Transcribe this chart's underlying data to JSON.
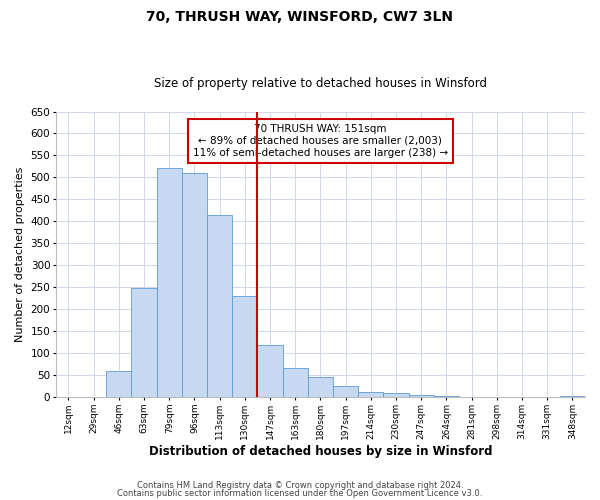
{
  "title": "70, THRUSH WAY, WINSFORD, CW7 3LN",
  "subtitle": "Size of property relative to detached houses in Winsford",
  "xlabel": "Distribution of detached houses by size in Winsford",
  "ylabel": "Number of detached properties",
  "bin_labels": [
    "12sqm",
    "29sqm",
    "46sqm",
    "63sqm",
    "79sqm",
    "96sqm",
    "113sqm",
    "130sqm",
    "147sqm",
    "163sqm",
    "180sqm",
    "197sqm",
    "214sqm",
    "230sqm",
    "247sqm",
    "264sqm",
    "281sqm",
    "298sqm",
    "314sqm",
    "331sqm",
    "348sqm"
  ],
  "bar_heights": [
    0,
    0,
    60,
    248,
    521,
    510,
    415,
    230,
    118,
    65,
    45,
    25,
    12,
    8,
    4,
    2,
    0,
    0,
    0,
    0,
    2
  ],
  "bar_color": "#c6d9f0",
  "bar_edge_color": "#5b9bd5",
  "property_line_bin": 8,
  "property_line_color": "#cc0000",
  "annotation_line1": "70 THRUSH WAY: 151sqm",
  "annotation_line2": "← 89% of detached houses are smaller (2,003)",
  "annotation_line3": "11% of semi-detached houses are larger (238) →",
  "annotation_box_color": "#ffffff",
  "annotation_box_edge": "#cc0000",
  "ylim": [
    0,
    650
  ],
  "yticks": [
    0,
    50,
    100,
    150,
    200,
    250,
    300,
    350,
    400,
    450,
    500,
    550,
    600,
    650
  ],
  "footer_line1": "Contains HM Land Registry data © Crown copyright and database right 2024.",
  "footer_line2": "Contains public sector information licensed under the Open Government Licence v3.0.",
  "background_color": "#ffffff",
  "grid_color": "#d0d8e8"
}
